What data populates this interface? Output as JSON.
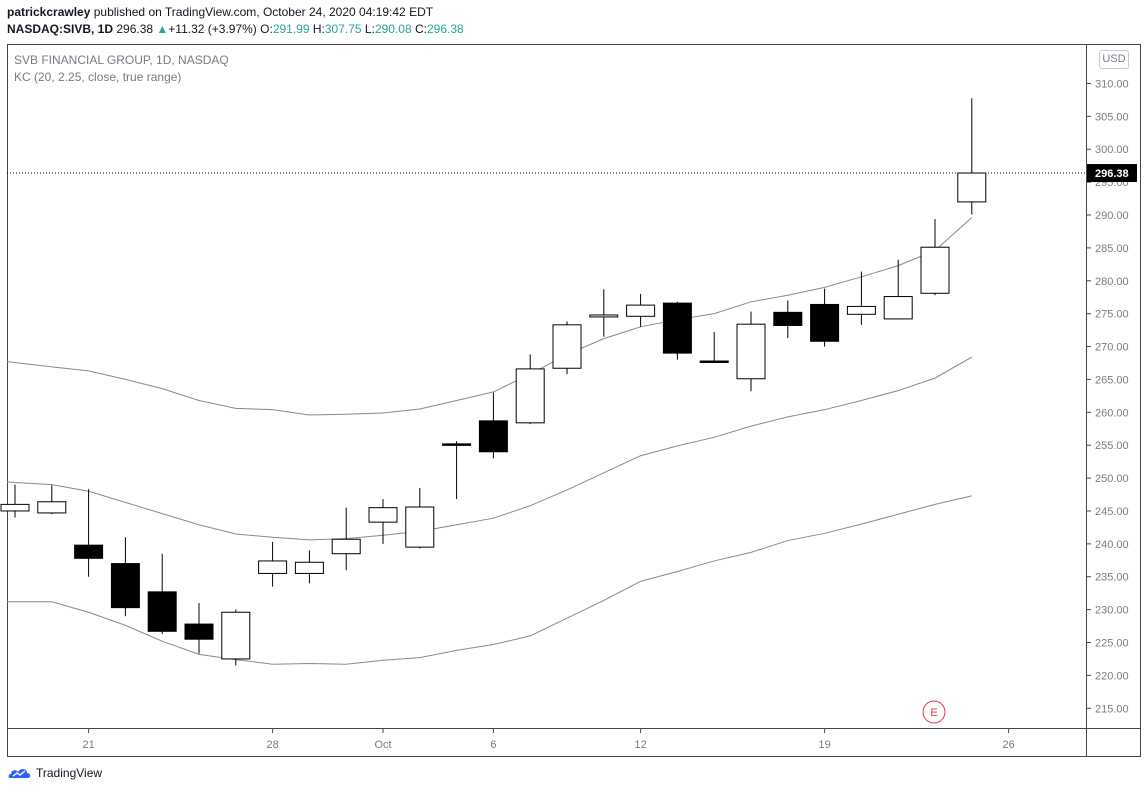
{
  "header": {
    "author": "patrickcrawley",
    "published_text": "published on TradingView.com, October 24, 2020 04:19:42 EDT",
    "symbol_line": "NASDAQ:SIVB, 1D",
    "last": "296.38",
    "change_arrow": "▲",
    "change": "+11.32 (+3.97%)",
    "o_label": "O:",
    "o": "291.99",
    "h_label": "H:",
    "h": "307.75",
    "l_label": "L:",
    "l": "290.08",
    "c_label": "C:",
    "c": "296.38"
  },
  "legend": {
    "title": "SVB FINANCIAL GROUP, 1D, NASDAQ",
    "indicator": "KC (20, 2.25, close, true range)"
  },
  "currency": "USD",
  "brand": "TradingView",
  "earnings_marker": "E",
  "colors": {
    "up_fill": "#ffffff",
    "down_fill": "#000000",
    "candle_border": "#000000",
    "kc_line": "#8a8a8a",
    "price_label_bg": "#000000",
    "earnings": "#e0394e"
  },
  "chart_data": {
    "type": "candlestick",
    "ylim": [
      212,
      316
    ],
    "y_ticks": [
      "215.00",
      "220.00",
      "225.00",
      "230.00",
      "235.00",
      "240.00",
      "245.00",
      "250.00",
      "255.00",
      "260.00",
      "265.00",
      "270.00",
      "275.00",
      "280.00",
      "285.00",
      "290.00",
      "295.00",
      "300.00",
      "305.00",
      "310.00"
    ],
    "x_ticks": [
      {
        "label": "21",
        "bar": 2
      },
      {
        "label": "28",
        "bar": 7
      },
      {
        "label": "Oct",
        "bar": 10
      },
      {
        "label": "6",
        "bar": 13
      },
      {
        "label": "12",
        "bar": 17
      },
      {
        "label": "19",
        "bar": 22
      },
      {
        "label": "26",
        "bar": 27
      }
    ],
    "last_price": "296.38",
    "candles": [
      {
        "o": 245.0,
        "h": 249.0,
        "l": 244.0,
        "c": 246.0
      },
      {
        "o": 244.7,
        "h": 248.9,
        "l": 244.5,
        "c": 246.4
      },
      {
        "o": 239.8,
        "h": 248.3,
        "l": 235.0,
        "c": 237.8
      },
      {
        "o": 237.0,
        "h": 241.0,
        "l": 229.0,
        "c": 230.3
      },
      {
        "o": 232.7,
        "h": 238.5,
        "l": 226.3,
        "c": 226.7
      },
      {
        "o": 227.8,
        "h": 231.0,
        "l": 223.3,
        "c": 225.5
      },
      {
        "o": 222.5,
        "h": 230.0,
        "l": 221.5,
        "c": 229.6
      },
      {
        "o": 235.5,
        "h": 240.3,
        "l": 233.5,
        "c": 237.4
      },
      {
        "o": 235.5,
        "h": 239.0,
        "l": 234.0,
        "c": 237.2
      },
      {
        "o": 238.5,
        "h": 245.5,
        "l": 236.0,
        "c": 240.7
      },
      {
        "o": 243.3,
        "h": 246.8,
        "l": 240.0,
        "c": 245.5
      },
      {
        "o": 239.5,
        "h": 248.5,
        "l": 239.3,
        "c": 245.6
      },
      {
        "o": 255.2,
        "h": 255.6,
        "l": 246.8,
        "c": 255.0
      },
      {
        "o": 258.7,
        "h": 263.0,
        "l": 253.0,
        "c": 254.0
      },
      {
        "o": 258.4,
        "h": 268.8,
        "l": 258.2,
        "c": 266.6
      },
      {
        "o": 266.7,
        "h": 273.8,
        "l": 265.8,
        "c": 273.3
      },
      {
        "o": 274.5,
        "h": 278.7,
        "l": 271.5,
        "c": 274.8
      },
      {
        "o": 274.6,
        "h": 278.0,
        "l": 273.0,
        "c": 276.3
      },
      {
        "o": 276.6,
        "h": 276.8,
        "l": 268.0,
        "c": 269.0
      },
      {
        "o": 267.8,
        "h": 272.2,
        "l": 267.6,
        "c": 267.6
      },
      {
        "o": 265.1,
        "h": 275.3,
        "l": 263.2,
        "c": 273.4
      },
      {
        "o": 275.2,
        "h": 277.0,
        "l": 271.3,
        "c": 273.2
      },
      {
        "o": 276.4,
        "h": 278.8,
        "l": 270.0,
        "c": 270.8
      },
      {
        "o": 274.9,
        "h": 281.4,
        "l": 273.3,
        "c": 276.1
      },
      {
        "o": 274.2,
        "h": 283.2,
        "l": 274.2,
        "c": 277.6
      },
      {
        "o": 278.1,
        "h": 289.4,
        "l": 277.8,
        "c": 285.1
      },
      {
        "o": 291.99,
        "h": 307.75,
        "l": 290.08,
        "c": 296.38
      }
    ],
    "kc_upper": [
      null,
      null,
      null,
      null,
      null,
      null,
      null,
      null,
      null,
      null,
      null,
      null,
      null,
      null,
      null,
      null,
      null,
      null,
      null,
      null,
      null,
      null,
      null,
      null,
      null,
      null,
      null
    ],
    "kc": {
      "upper": [
        267.7,
        266.9,
        266.3,
        265.0,
        263.6,
        261.8,
        260.6,
        260.4,
        259.6,
        259.7,
        259.9,
        260.5,
        261.8,
        263.1,
        265.8,
        268.8,
        271.2,
        273.0,
        274.1,
        275.0,
        276.8,
        277.8,
        279.0,
        280.6,
        282.3,
        284.6,
        289.6
      ],
      "middle": [
        249.4,
        249.0,
        248.0,
        246.3,
        244.6,
        242.9,
        241.5,
        241.0,
        240.6,
        240.8,
        241.3,
        241.9,
        242.9,
        243.9,
        245.8,
        248.2,
        250.8,
        253.4,
        254.9,
        256.2,
        257.9,
        259.3,
        260.4,
        261.8,
        263.3,
        265.2,
        268.4
      ],
      "lower": [
        231.2,
        231.2,
        229.6,
        227.6,
        225.2,
        223.2,
        222.4,
        221.7,
        221.8,
        221.7,
        222.3,
        222.7,
        223.8,
        224.7,
        226.0,
        228.7,
        231.4,
        234.3,
        235.8,
        237.4,
        238.7,
        240.5,
        241.6,
        243.0,
        244.5,
        246.0,
        247.3
      ]
    }
  }
}
